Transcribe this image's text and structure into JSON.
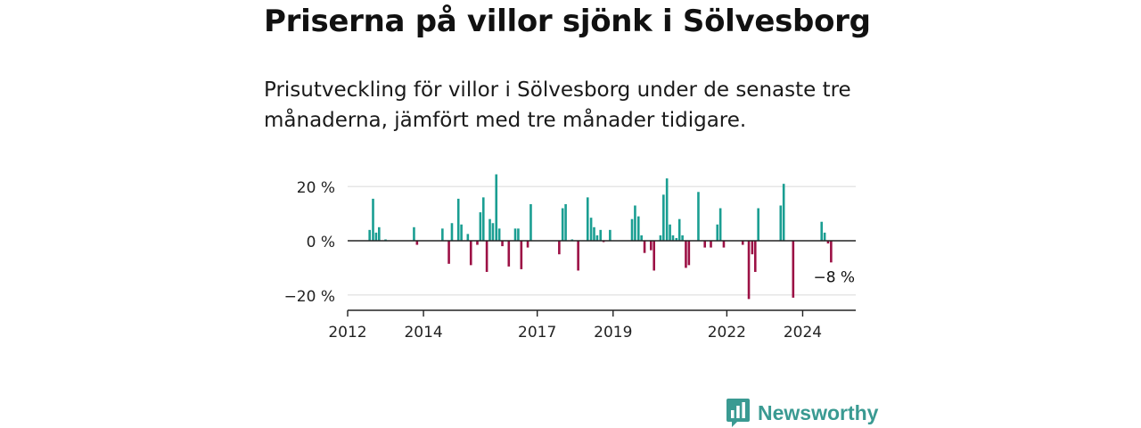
{
  "page": {
    "title": "Priserna på villor sjönk i Sölvesborg",
    "subtitle": "Prisutveckling för villor i Sölvesborg under de senaste tre månaderna, jämfört med tre månader tidigare."
  },
  "brand": {
    "name": "Newsworthy",
    "icon": "newsworthy-logo-icon"
  },
  "colors": {
    "positive": "#1a9e92",
    "negative": "#9c1145",
    "grid": "#dddddd",
    "axis": "#222222"
  },
  "chart_data": {
    "type": "bar",
    "x_label": "",
    "y_label": "",
    "ylim": [
      -25,
      25
    ],
    "y_ticks": [
      -20,
      0,
      20
    ],
    "y_tick_labels": [
      "−20 %",
      "0 %",
      "20 %"
    ],
    "x_range": [
      2012.0,
      2025.4
    ],
    "x_ticks": [
      2012,
      2014,
      2017,
      2019,
      2022,
      2024
    ],
    "x_tick_labels": [
      "2012",
      "2014",
      "2017",
      "2019",
      "2022",
      "2024"
    ],
    "grid": true,
    "annotation": {
      "text": "−8 %",
      "x": 2024.8,
      "value": -8
    },
    "points": [
      {
        "x": 2012.58,
        "v": 4
      },
      {
        "x": 2012.67,
        "v": 15.5
      },
      {
        "x": 2012.75,
        "v": 3
      },
      {
        "x": 2012.83,
        "v": 5
      },
      {
        "x": 2013.0,
        "v": 0.5
      },
      {
        "x": 2013.75,
        "v": 5
      },
      {
        "x": 2013.83,
        "v": -1.5
      },
      {
        "x": 2014.5,
        "v": 4.5
      },
      {
        "x": 2014.67,
        "v": -8.5
      },
      {
        "x": 2014.75,
        "v": 6.5
      },
      {
        "x": 2014.92,
        "v": 15.5
      },
      {
        "x": 2015.0,
        "v": 6
      },
      {
        "x": 2015.17,
        "v": 2.5
      },
      {
        "x": 2015.25,
        "v": -9
      },
      {
        "x": 2015.42,
        "v": -1.5
      },
      {
        "x": 2015.5,
        "v": 10.5
      },
      {
        "x": 2015.58,
        "v": 16
      },
      {
        "x": 2015.67,
        "v": -11.5
      },
      {
        "x": 2015.75,
        "v": 8
      },
      {
        "x": 2015.83,
        "v": 6.5
      },
      {
        "x": 2015.92,
        "v": 24.5
      },
      {
        "x": 2016.0,
        "v": 4.5
      },
      {
        "x": 2016.08,
        "v": -2
      },
      {
        "x": 2016.25,
        "v": -9.5
      },
      {
        "x": 2016.42,
        "v": 4.5
      },
      {
        "x": 2016.5,
        "v": 4.5
      },
      {
        "x": 2016.58,
        "v": -10.5
      },
      {
        "x": 2016.75,
        "v": -2.5
      },
      {
        "x": 2016.83,
        "v": 13.5
      },
      {
        "x": 2017.58,
        "v": -5
      },
      {
        "x": 2017.67,
        "v": 12
      },
      {
        "x": 2017.75,
        "v": 13.5
      },
      {
        "x": 2017.92,
        "v": 0.5
      },
      {
        "x": 2018.08,
        "v": -11
      },
      {
        "x": 2018.33,
        "v": 16
      },
      {
        "x": 2018.42,
        "v": 8.5
      },
      {
        "x": 2018.5,
        "v": 5
      },
      {
        "x": 2018.58,
        "v": 2
      },
      {
        "x": 2018.67,
        "v": 4
      },
      {
        "x": 2018.75,
        "v": -0.5
      },
      {
        "x": 2018.92,
        "v": 4
      },
      {
        "x": 2019.5,
        "v": 8
      },
      {
        "x": 2019.58,
        "v": 13
      },
      {
        "x": 2019.67,
        "v": 9
      },
      {
        "x": 2019.75,
        "v": 2
      },
      {
        "x": 2019.83,
        "v": -4.5
      },
      {
        "x": 2020.0,
        "v": -3.5
      },
      {
        "x": 2020.08,
        "v": -11
      },
      {
        "x": 2020.25,
        "v": 2
      },
      {
        "x": 2020.33,
        "v": 17
      },
      {
        "x": 2020.42,
        "v": 23
      },
      {
        "x": 2020.5,
        "v": 6
      },
      {
        "x": 2020.58,
        "v": 2
      },
      {
        "x": 2020.67,
        "v": 1
      },
      {
        "x": 2020.75,
        "v": 8
      },
      {
        "x": 2020.83,
        "v": 2
      },
      {
        "x": 2020.92,
        "v": -10
      },
      {
        "x": 2021.0,
        "v": -9
      },
      {
        "x": 2021.25,
        "v": 18
      },
      {
        "x": 2021.42,
        "v": -2.5
      },
      {
        "x": 2021.58,
        "v": -2.5
      },
      {
        "x": 2021.75,
        "v": 6
      },
      {
        "x": 2021.83,
        "v": 12
      },
      {
        "x": 2021.92,
        "v": -2.5
      },
      {
        "x": 2022.42,
        "v": -1.5
      },
      {
        "x": 2022.58,
        "v": -21.5
      },
      {
        "x": 2022.67,
        "v": -5
      },
      {
        "x": 2022.75,
        "v": -11.5
      },
      {
        "x": 2022.83,
        "v": 12
      },
      {
        "x": 2023.42,
        "v": 13
      },
      {
        "x": 2023.5,
        "v": 21
      },
      {
        "x": 2023.75,
        "v": -21
      },
      {
        "x": 2024.5,
        "v": 7
      },
      {
        "x": 2024.58,
        "v": 3
      },
      {
        "x": 2024.67,
        "v": -1
      },
      {
        "x": 2024.75,
        "v": -8
      }
    ]
  }
}
